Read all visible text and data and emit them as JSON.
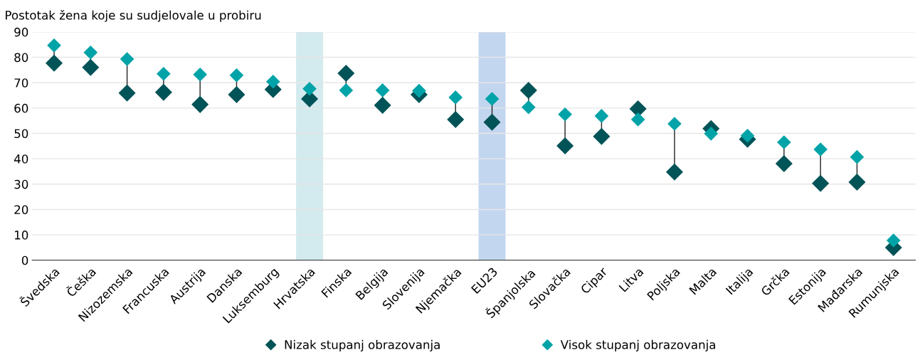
{
  "chart_data": {
    "type": "scatter",
    "ylabel": "Postotak žena koje su sudjelovale u probiru",
    "categories": [
      "Švedska",
      "Češka",
      "Nizozemska",
      "Francuska",
      "Austrija",
      "Danska",
      "Luksemburg",
      "Hrvatska",
      "Finska",
      "Belgija",
      "Slovenija",
      "Njemačka",
      "EU23",
      "Španjolska",
      "Slovačka",
      "Cipar",
      "Litva",
      "Poljska",
      "Malta",
      "Italija",
      "Grčka",
      "Estonija",
      "Mađarska",
      "Rumunjska"
    ],
    "series": [
      {
        "name": "Nizak stupanj obrazovanja",
        "color": "#005357",
        "values": [
          77.7,
          76.0,
          65.9,
          66.2,
          61.4,
          65.3,
          67.3,
          63.6,
          73.7,
          61.1,
          65.3,
          55.5,
          54.4,
          67.0,
          45.1,
          48.8,
          59.7,
          34.8,
          51.9,
          47.7,
          38.1,
          30.3,
          30.8,
          5.0
        ]
      },
      {
        "name": "Visok stupanj obrazovanja",
        "color": "#00a3a8",
        "values": [
          84.7,
          81.9,
          79.3,
          73.5,
          73.2,
          72.9,
          70.4,
          67.6,
          67.0,
          67.0,
          66.8,
          64.2,
          63.6,
          60.3,
          57.5,
          56.9,
          55.5,
          53.8,
          49.9,
          49.1,
          46.5,
          43.7,
          40.7,
          7.8
        ]
      }
    ],
    "ylim": [
      0,
      90
    ],
    "yticks": [
      0,
      10,
      20,
      30,
      40,
      50,
      60,
      70,
      80,
      90
    ],
    "bands": [
      {
        "axis": "x",
        "from": "Hrvatska",
        "to": "Hrvatska",
        "color": "#d3eaee"
      },
      {
        "axis": "x",
        "from": "EU23",
        "to": "EU23",
        "color": "#c3d6ef"
      }
    ],
    "grid": "y",
    "legend": "bottom",
    "marker": "diamond"
  }
}
